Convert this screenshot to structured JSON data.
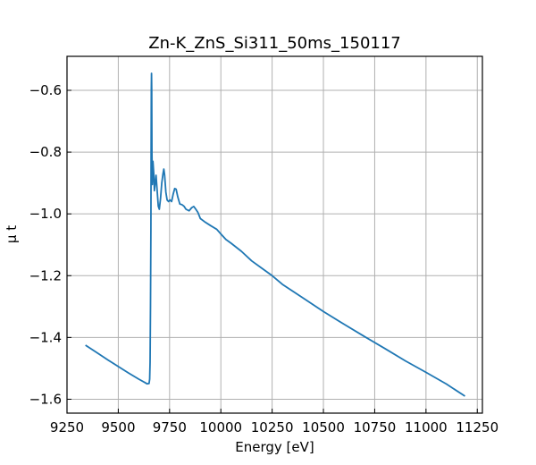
{
  "chart_data": {
    "type": "line",
    "title": "Zn-K_ZnS_Si311_50ms_150117",
    "xlabel": "Energy [eV]",
    "ylabel": "μ t",
    "xlim": [
      9250,
      11275
    ],
    "ylim": [
      -1.645,
      -0.49
    ],
    "xticks": [
      9250,
      9500,
      9750,
      10000,
      10250,
      10500,
      10750,
      11000,
      11250
    ],
    "yticks": [
      -1.6,
      -1.4,
      -1.2,
      -1.0,
      -0.8,
      -0.6
    ],
    "ytick_labels": [
      "−1.6",
      "−1.4",
      "−1.2",
      "−1.0",
      "−0.8",
      "−0.6"
    ],
    "grid": true,
    "series": [
      {
        "color": "#1f77b4",
        "points": [
          [
            9340,
            -1.425
          ],
          [
            9400,
            -1.451
          ],
          [
            9450,
            -1.473
          ],
          [
            9500,
            -1.494
          ],
          [
            9550,
            -1.515
          ],
          [
            9600,
            -1.535
          ],
          [
            9630,
            -1.546
          ],
          [
            9640,
            -1.55
          ],
          [
            9650,
            -1.549
          ],
          [
            9653,
            -1.535
          ],
          [
            9655,
            -1.48
          ],
          [
            9657,
            -1.3
          ],
          [
            9659,
            -1.05
          ],
          [
            9660,
            -0.8
          ],
          [
            9661,
            -0.6
          ],
          [
            9662,
            -0.545
          ],
          [
            9663,
            -0.6
          ],
          [
            9664,
            -0.8
          ],
          [
            9666,
            -0.905
          ],
          [
            9669,
            -0.83
          ],
          [
            9673,
            -0.87
          ],
          [
            9676,
            -0.925
          ],
          [
            9680,
            -0.9
          ],
          [
            9684,
            -0.875
          ],
          [
            9689,
            -0.92
          ],
          [
            9695,
            -0.975
          ],
          [
            9700,
            -0.985
          ],
          [
            9706,
            -0.95
          ],
          [
            9712,
            -0.9
          ],
          [
            9718,
            -0.87
          ],
          [
            9722,
            -0.855
          ],
          [
            9726,
            -0.875
          ],
          [
            9732,
            -0.93
          ],
          [
            9738,
            -0.955
          ],
          [
            9745,
            -0.96
          ],
          [
            9752,
            -0.955
          ],
          [
            9760,
            -0.96
          ],
          [
            9768,
            -0.935
          ],
          [
            9775,
            -0.918
          ],
          [
            9782,
            -0.92
          ],
          [
            9790,
            -0.945
          ],
          [
            9800,
            -0.968
          ],
          [
            9810,
            -0.97
          ],
          [
            9820,
            -0.975
          ],
          [
            9830,
            -0.985
          ],
          [
            9845,
            -0.99
          ],
          [
            9858,
            -0.98
          ],
          [
            9868,
            -0.976
          ],
          [
            9878,
            -0.985
          ],
          [
            9888,
            -0.995
          ],
          [
            9900,
            -1.015
          ],
          [
            9920,
            -1.025
          ],
          [
            9950,
            -1.038
          ],
          [
            9980,
            -1.05
          ],
          [
            10000,
            -1.065
          ],
          [
            10025,
            -1.083
          ],
          [
            10050,
            -1.095
          ],
          [
            10100,
            -1.121
          ],
          [
            10150,
            -1.152
          ],
          [
            10200,
            -1.176
          ],
          [
            10250,
            -1.2
          ],
          [
            10300,
            -1.228
          ],
          [
            10400,
            -1.272
          ],
          [
            10500,
            -1.316
          ],
          [
            10600,
            -1.357
          ],
          [
            10700,
            -1.397
          ],
          [
            10800,
            -1.436
          ],
          [
            10900,
            -1.476
          ],
          [
            11000,
            -1.513
          ],
          [
            11100,
            -1.551
          ],
          [
            11190,
            -1.59
          ]
        ]
      }
    ]
  }
}
